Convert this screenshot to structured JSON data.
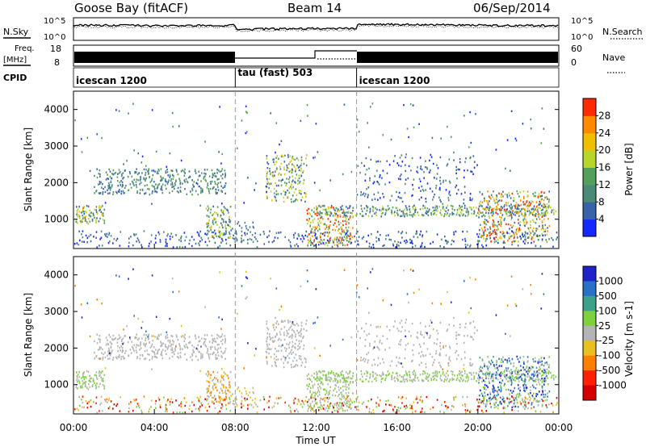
{
  "header": {
    "station": "Goose Bay (fitACF)",
    "beam": "Beam 14",
    "date": "06/Sep/2014"
  },
  "colors": {
    "ink": "#000000",
    "grey_line": "#999999"
  },
  "chart_data": [
    {
      "type": "line",
      "name": "noise",
      "left_label": "N.Sky",
      "right_label": "N.Search",
      "left_ticks": [
        "10^5",
        "10^0"
      ],
      "right_ticks": [
        "10^5",
        "10^0"
      ]
    },
    {
      "type": "line",
      "name": "frequency-nave",
      "left_label_1": "Freq.",
      "left_label_2": "[MHz]",
      "right_label": "Nave",
      "left_ticks": [
        "18",
        "8"
      ],
      "right_ticks": [
        "60",
        "0"
      ]
    },
    {
      "type": "table",
      "name": "cpid",
      "label": "CPID",
      "segments": [
        {
          "label": "icescan 1200",
          "start": 0,
          "end": 8
        },
        {
          "label": "tau (fast) 503",
          "start": 8,
          "end": 14
        },
        {
          "label": "icescan 1200",
          "start": 14,
          "end": 24
        }
      ]
    },
    {
      "type": "heatmap",
      "name": "power",
      "ylabel": "Slant Range [km]",
      "yticks": [
        "1000",
        "2000",
        "3000",
        "4000"
      ],
      "ylim": [
        200,
        4500
      ],
      "colorbar_label": "Power [dB]",
      "colorbar_ticks": [
        "4",
        "8",
        "12",
        "16",
        "20",
        "24",
        "28"
      ],
      "colorbar_colors": [
        "#1428ff",
        "#3a62a8",
        "#4b8a76",
        "#54a05a",
        "#b8d62a",
        "#f0c000",
        "#ff8a00",
        "#ff2a00"
      ]
    },
    {
      "type": "heatmap",
      "name": "velocity",
      "ylabel": "Slant Range [km]",
      "yticks": [
        "1000",
        "2000",
        "3000",
        "4000"
      ],
      "ylim": [
        200,
        4500
      ],
      "xlabel": "Time UT",
      "xticks": [
        "00:00",
        "04:00",
        "08:00",
        "12:00",
        "16:00",
        "20:00",
        "00:00"
      ],
      "colorbar_label": "Velocity [m s-1]",
      "colorbar_ticks": [
        "1000",
        "500",
        "100",
        "25",
        "-25",
        "-100",
        "-500",
        "-1000"
      ],
      "colorbar_colors": [
        "#1e22c8",
        "#2a70c8",
        "#3ca08a",
        "#7fd040",
        "#b4b4b4",
        "#e8c020",
        "#ff8000",
        "#ff2000",
        "#d40000"
      ]
    }
  ]
}
